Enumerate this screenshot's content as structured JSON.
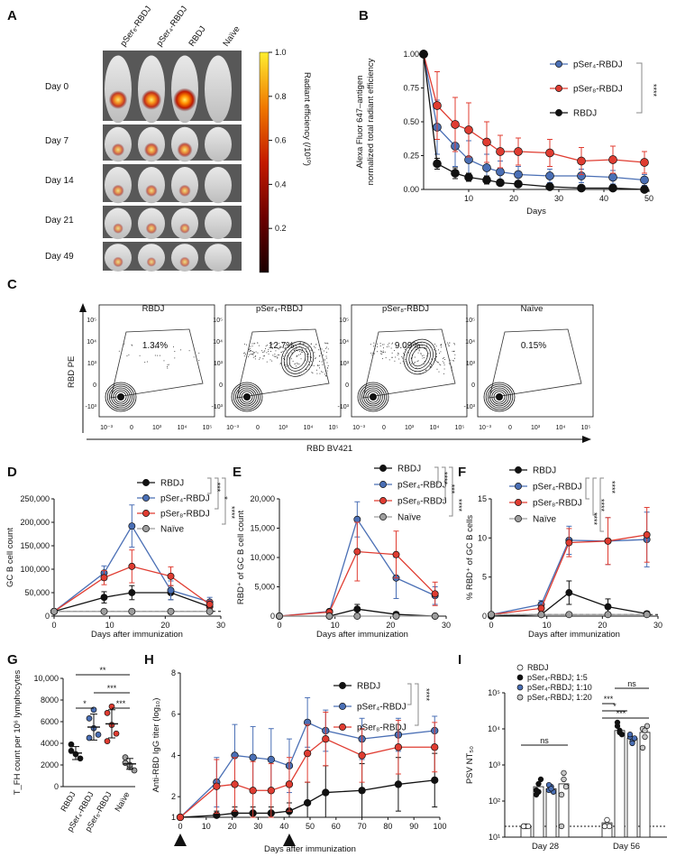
{
  "colors": {
    "black": "#111111",
    "blue": "#4a6fb5",
    "red": "#e03c31",
    "gray": "#9e9e9e",
    "lightgray": "#c8c8c8"
  },
  "panel_labels": {
    "A": "A",
    "B": "B",
    "C": "C",
    "D": "D",
    "E": "E",
    "F": "F",
    "G": "G",
    "H": "H",
    "I": "I"
  },
  "panelA": {
    "columns": [
      "pSer₈-RBDJ",
      "pSer₄-RBDJ",
      "RBDJ",
      "Naïve"
    ],
    "rows": [
      "Day 0",
      "Day 7",
      "Day 14",
      "Day 21",
      "Day 49"
    ],
    "colorbar_label": "Radiant efficiency (/10¹⁰)",
    "colorbar_ticks": [
      "1.0",
      "0.8",
      "0.6",
      "0.4",
      "0.2"
    ],
    "colorbar_values": [
      1.0,
      0.8,
      0.6,
      0.4,
      0.2
    ]
  },
  "chart_data": [
    {
      "id": "B",
      "type": "line",
      "ylabel_line1": "Alexa Fluor 647–antigen",
      "ylabel_line2": "normalized total radiant efficiency",
      "xlabel": "Days",
      "xlim": [
        0,
        50
      ],
      "ylim": [
        0,
        1.0
      ],
      "xticks": [
        "10",
        "20",
        "30",
        "40",
        "50"
      ],
      "yticks": [
        "0.00",
        "0.25",
        "0.50",
        "0.75",
        "1.00"
      ],
      "x": [
        0,
        3,
        7,
        10,
        14,
        17,
        21,
        28,
        35,
        42,
        49
      ],
      "series": [
        {
          "name": "pSer₄-RBDJ",
          "color": "blue",
          "values": [
            1.0,
            0.46,
            0.32,
            0.22,
            0.16,
            0.13,
            0.11,
            0.1,
            0.1,
            0.09,
            0.07
          ],
          "err": [
            0,
            0.2,
            0.15,
            0.14,
            0.1,
            0.08,
            0.06,
            0.05,
            0.05,
            0.05,
            0.04
          ]
        },
        {
          "name": "pSer₈-RBDJ",
          "color": "red",
          "values": [
            1.0,
            0.62,
            0.48,
            0.44,
            0.35,
            0.28,
            0.28,
            0.27,
            0.21,
            0.22,
            0.2
          ],
          "err": [
            0,
            0.25,
            0.2,
            0.2,
            0.15,
            0.12,
            0.1,
            0.1,
            0.1,
            0.1,
            0.08
          ]
        },
        {
          "name": "RBDJ",
          "color": "black",
          "values": [
            1.0,
            0.19,
            0.12,
            0.09,
            0.07,
            0.05,
            0.04,
            0.02,
            0.01,
            0.01,
            0.0
          ],
          "err": [
            0,
            0.04,
            0.04,
            0.03,
            0.03,
            0.02,
            0.02,
            0.02,
            0.01,
            0.01,
            0.01
          ]
        }
      ],
      "stat": "****"
    },
    {
      "id": "D",
      "type": "line",
      "ylabel": "GC B cell count",
      "xlabel": "Days after immunization",
      "xlim": [
        0,
        30
      ],
      "ylim": [
        0,
        250000
      ],
      "xticks": [
        "0",
        "10",
        "20",
        "30"
      ],
      "yticks": [
        "0",
        "50,000",
        "100,000",
        "150,000",
        "200,000",
        "250,000"
      ],
      "x": [
        0,
        9,
        14,
        21,
        28
      ],
      "series": [
        {
          "name": "RBDJ",
          "color": "black",
          "values": [
            10000,
            40000,
            50000,
            50000,
            20000
          ],
          "err": [
            0,
            12000,
            15000,
            15000,
            8000
          ]
        },
        {
          "name": "pSer₄-RBDJ",
          "color": "blue",
          "values": [
            10000,
            92000,
            192000,
            55000,
            30000
          ],
          "err": [
            0,
            15000,
            45000,
            20000,
            10000
          ]
        },
        {
          "name": "pSer₈-RBDJ",
          "color": "red",
          "values": [
            10000,
            82000,
            106000,
            85000,
            25000
          ],
          "err": [
            0,
            15000,
            35000,
            20000,
            8000
          ]
        },
        {
          "name": "Naïve",
          "color": "gray",
          "values": [
            10000,
            10000,
            10000,
            10000,
            10000
          ],
          "err": [
            0,
            3000,
            3000,
            3000,
            3000
          ]
        }
      ],
      "stats": [
        "***",
        "*",
        "****"
      ]
    },
    {
      "id": "E",
      "type": "line",
      "ylabel": "RBD⁺ of GC B cell count",
      "xlabel": "Days after immunization",
      "xlim": [
        0,
        30
      ],
      "ylim": [
        0,
        20000
      ],
      "xticks": [
        "0",
        "10",
        "20",
        "30"
      ],
      "yticks": [
        "0",
        "5,000",
        "10,000",
        "15,000",
        "20,000"
      ],
      "x": [
        0,
        9,
        14,
        21,
        28
      ],
      "series": [
        {
          "name": "RBDJ",
          "color": "black",
          "values": [
            0,
            0,
            1200,
            300,
            0
          ],
          "err": [
            0,
            0,
            800,
            400,
            0
          ]
        },
        {
          "name": "pSer₄-RBDJ",
          "color": "blue",
          "values": [
            0,
            800,
            16500,
            6500,
            3500
          ],
          "err": [
            0,
            300,
            3000,
            3500,
            1500
          ]
        },
        {
          "name": "pSer₈-RBDJ",
          "color": "red",
          "values": [
            0,
            700,
            11000,
            10500,
            3800
          ],
          "err": [
            0,
            300,
            5000,
            4000,
            2000
          ]
        },
        {
          "name": "Naïve",
          "color": "gray",
          "values": [
            0,
            0,
            0,
            0,
            0
          ],
          "err": [
            0,
            0,
            0,
            0,
            0
          ]
        }
      ],
      "stats": [
        "****",
        "***",
        "****"
      ]
    },
    {
      "id": "F",
      "type": "line",
      "ylabel": "% RBD⁺ of GC B cells",
      "xlabel": "Days after immunization",
      "xlim": [
        0,
        30
      ],
      "ylim": [
        0,
        15
      ],
      "xticks": [
        "0",
        "10",
        "20",
        "30"
      ],
      "yticks": [
        "0",
        "5",
        "10",
        "15"
      ],
      "x": [
        0,
        9,
        14,
        21,
        28
      ],
      "series": [
        {
          "name": "RBDJ",
          "color": "black",
          "values": [
            0,
            0.2,
            3.0,
            1.2,
            0.3
          ],
          "err": [
            0,
            0.3,
            1.5,
            1.0,
            0.3
          ]
        },
        {
          "name": "pSer₄-RBDJ",
          "color": "blue",
          "values": [
            0.2,
            1.5,
            9.7,
            9.6,
            9.8
          ],
          "err": [
            0,
            0.5,
            1.8,
            3.0,
            3.5
          ]
        },
        {
          "name": "pSer₈-RBDJ",
          "color": "red",
          "values": [
            0.2,
            1.0,
            9.4,
            9.6,
            10.4
          ],
          "err": [
            0,
            0.4,
            1.8,
            3.0,
            3.5
          ]
        },
        {
          "name": "Naïve",
          "color": "gray",
          "values": [
            0.2,
            0.2,
            0.2,
            0.2,
            0.2
          ],
          "err": [
            0,
            0,
            0,
            0,
            0
          ]
        }
      ],
      "stats": [
        "****",
        "****",
        "****"
      ]
    },
    {
      "id": "G",
      "type": "scatter",
      "ylabel": "T_FH count per 10⁶ lymphocytes",
      "ylim": [
        0,
        10000
      ],
      "yticks": [
        "0",
        "2000",
        "4000",
        "6000",
        "8000",
        "10,000"
      ],
      "categories": [
        "RBDJ",
        "pSer₄-RBDJ",
        "pSer₈-RBDJ",
        "Naïve"
      ],
      "series": [
        {
          "name": "RBDJ",
          "color": "black",
          "mean": 3100,
          "err": 600,
          "points": [
            3900,
            3000,
            2600,
            3300
          ]
        },
        {
          "name": "pSer₄-RBDJ",
          "color": "blue",
          "mean": 5500,
          "err": 1200,
          "points": [
            6300,
            5400,
            4800,
            4500,
            7100
          ]
        },
        {
          "name": "pSer₈-RBDJ",
          "color": "red",
          "mean": 5800,
          "err": 1300,
          "points": [
            6800,
            5700,
            4900,
            4200,
            7400
          ]
        },
        {
          "name": "Naïve",
          "color": "gray",
          "mean": 2100,
          "err": 500,
          "points": [
            2700,
            1800,
            1500,
            2200,
            2000
          ]
        }
      ],
      "stats": [
        "**",
        "***",
        "*",
        "***"
      ]
    },
    {
      "id": "H",
      "type": "line",
      "ylabel": "Anti-RBD IgG titer (log₁₀)",
      "xlabel": "Days after immunization",
      "xlim": [
        0,
        100
      ],
      "ylim": [
        1,
        8
      ],
      "xticks": [
        "0",
        "10",
        "20",
        "30",
        "40",
        "50",
        "60",
        "70",
        "80",
        "90",
        "100"
      ],
      "yticks": [
        "2",
        "4",
        "6",
        "8"
      ],
      "ytick_values": [
        2,
        4,
        6,
        8
      ],
      "boost_days": [
        0,
        42
      ],
      "x": [
        0,
        14,
        21,
        28,
        35,
        42,
        49,
        56,
        70,
        84,
        98
      ],
      "series": [
        {
          "name": "RBDJ",
          "color": "black",
          "values": [
            1,
            1.1,
            1.2,
            1.2,
            1.2,
            1.3,
            1.7,
            2.2,
            2.3,
            2.6,
            2.8
          ],
          "err": [
            0,
            0.2,
            0.3,
            0.3,
            0.3,
            0.4,
            1.0,
            1.3,
            1.3,
            1.3,
            1.3
          ]
        },
        {
          "name": "pSer₄-RBDJ",
          "color": "blue",
          "values": [
            1,
            2.7,
            4.0,
            3.9,
            3.8,
            3.5,
            5.6,
            5.2,
            4.8,
            5.0,
            5.2
          ],
          "err": [
            0,
            1.2,
            1.5,
            1.5,
            1.5,
            1.3,
            1.2,
            1.0,
            1.0,
            0.8,
            0.7
          ]
        },
        {
          "name": "pSer₈-RBDJ",
          "color": "red",
          "values": [
            1,
            2.5,
            2.6,
            2.3,
            2.3,
            2.6,
            4.1,
            4.8,
            4.0,
            4.4,
            4.4
          ],
          "err": [
            0,
            1.3,
            1.3,
            1.4,
            1.3,
            1.3,
            1.4,
            1.3,
            1.3,
            1.3,
            1.2
          ]
        }
      ],
      "stat": "****"
    },
    {
      "id": "I",
      "type": "bar",
      "ylabel": "PSV NT₅₀",
      "ylim_log10": [
        1,
        5
      ],
      "yticks": [
        "10¹",
        "10²",
        "10³",
        "10⁴",
        "10⁵"
      ],
      "categories": [
        "Day 28",
        "Day 56"
      ],
      "series": [
        {
          "name": "RBDJ",
          "fill": "white",
          "values": [
            20,
            25
          ],
          "points": [
            [
              20,
              20,
              20,
              20
            ],
            [
              20,
              30,
              20,
              20
            ]
          ]
        },
        {
          "name": "pSer₄-RBDJ; 1:5",
          "fill": "black",
          "values": [
            250,
            9000
          ],
          "points": [
            [
              150,
              300,
              400,
              200,
              180
            ],
            [
              12000,
              9000,
              7000,
              15000,
              8000
            ]
          ]
        },
        {
          "name": "pSer₄-RBDJ; 1:10",
          "fill": "blue",
          "values": [
            220,
            5500
          ],
          "points": [
            [
              200,
              250,
              180,
              280,
              220
            ],
            [
              6000,
              4500,
              5500,
              7000,
              4000
            ]
          ]
        },
        {
          "name": "pSer₄-RBDJ; 1:20",
          "fill": "lightgray",
          "values": [
            300,
            8000
          ],
          "points": [
            [
              20,
              400,
              250,
              150,
              600
            ],
            [
              10000,
              6000,
              12000,
              3000,
              9000
            ]
          ]
        }
      ],
      "stats": [
        "ns",
        "ns",
        "***",
        "*",
        "***"
      ]
    }
  ],
  "panelC": {
    "ylabel": "RBD PE",
    "xlabel": "RBD BV421",
    "plots": [
      {
        "name": "RBDJ",
        "pct": "1.34%"
      },
      {
        "name": "pSer₄-RBDJ",
        "pct": "12.7%"
      },
      {
        "name": "pSer₈-RBDJ",
        "pct": "9.09%"
      },
      {
        "name": "Naïve",
        "pct": "0.15%"
      }
    ],
    "yticks": [
      "10⁵",
      "10⁴",
      "10³",
      "0",
      "-10³"
    ],
    "xticks": [
      "10⁻³",
      "0",
      "10³",
      "10⁴",
      "10⁵"
    ]
  }
}
